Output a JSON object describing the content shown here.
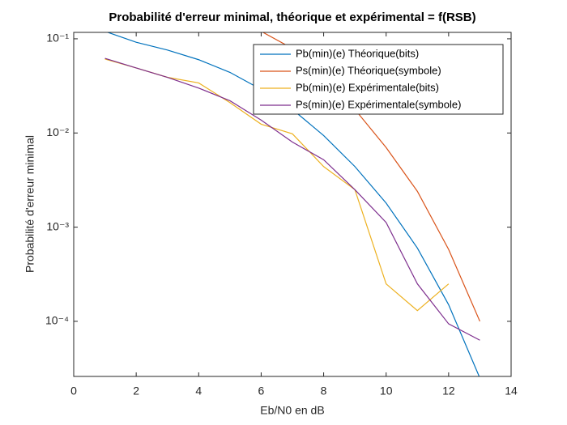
{
  "chart_data": {
    "type": "line",
    "title": "Probabilité d'erreur minimal, théorique et expérimental = f(RSB)",
    "x_label": "Eb/N0 en dB",
    "y_label": "Probabilité d'erreur minimal",
    "log_y": true,
    "xlim": [
      0,
      14
    ],
    "xticks": [
      0,
      2,
      4,
      6,
      8,
      10,
      12,
      14
    ],
    "ylim": [
      2.6e-05,
      0.117
    ],
    "yticks": [
      {
        "value": 0.0001,
        "label": "10⁻⁴"
      },
      {
        "value": 0.001,
        "label": "10⁻³"
      },
      {
        "value": 0.01,
        "label": "10⁻²"
      },
      {
        "value": 0.1,
        "label": "10⁻¹"
      }
    ],
    "legend_position": "upper right",
    "series": [
      {
        "name": "Pb(min)(e) Théorique(bits)",
        "color": "#0072BD",
        "x": [
          1,
          2,
          3,
          4,
          5,
          6,
          7,
          8,
          9,
          10,
          11,
          12,
          13
        ],
        "values": [
          0.12,
          0.092,
          0.076,
          0.06,
          0.044,
          0.029,
          0.0178,
          0.0094,
          0.0044,
          0.0018,
          0.0006,
          0.00015,
          2.5e-05
        ]
      },
      {
        "name": "Ps(min)(e) Théorique(symbole)",
        "color": "#D95319",
        "x": [
          6,
          7,
          8,
          9,
          10,
          11,
          12,
          13
        ],
        "values": [
          0.12,
          0.079,
          0.036,
          0.0178,
          0.007,
          0.0024,
          0.00058,
          0.0001
        ]
      },
      {
        "name": "Pb(min)(e) Expérimentale(bits)",
        "color": "#EDB120",
        "x": [
          1,
          2,
          3,
          4,
          5,
          6,
          7,
          8,
          9,
          10,
          11,
          12
        ],
        "values": [
          0.061,
          0.049,
          0.039,
          0.034,
          0.021,
          0.0124,
          0.0098,
          0.0044,
          0.0025,
          0.00025,
          0.00013,
          0.00025
        ]
      },
      {
        "name": "Ps(min)(e) Expérimentale(symbole)",
        "color": "#7E2F8E",
        "x": [
          1,
          2,
          3,
          4,
          5,
          6,
          7,
          8,
          9,
          10,
          11,
          12,
          13
        ],
        "values": [
          0.062,
          0.049,
          0.039,
          0.03,
          0.022,
          0.0137,
          0.008,
          0.0052,
          0.0025,
          0.00112,
          0.00025,
          9.4e-05,
          6.3e-05
        ]
      }
    ]
  }
}
